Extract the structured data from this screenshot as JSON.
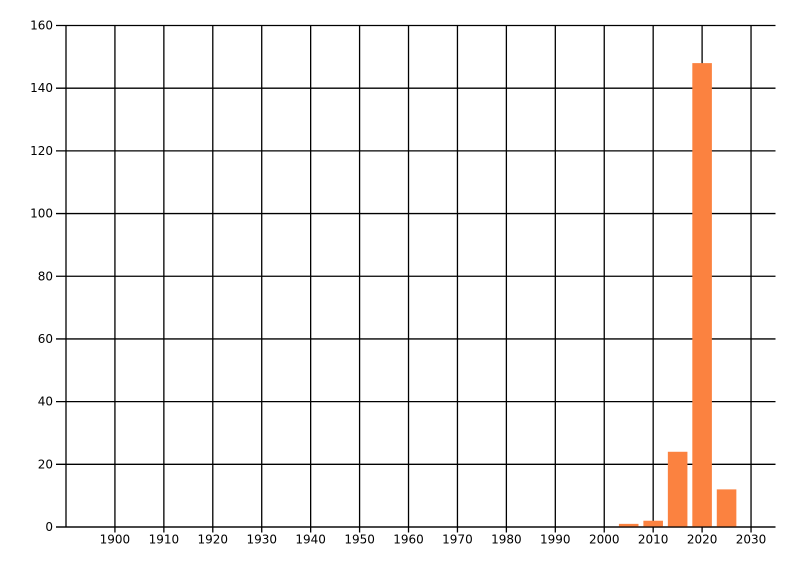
{
  "chart_data": {
    "type": "bar",
    "title": "",
    "xlabel": "",
    "ylabel": "",
    "categories": [
      2005,
      2010,
      2015,
      2020,
      2025
    ],
    "values": [
      1,
      2,
      24,
      148,
      12
    ],
    "bar_width_years": 4,
    "xlim": [
      1890,
      2035
    ],
    "ylim": [
      0,
      160
    ],
    "x_ticks": [
      1900,
      1910,
      1920,
      1930,
      1940,
      1950,
      1960,
      1970,
      1980,
      1990,
      2000,
      2010,
      2020,
      2030
    ],
    "y_ticks": [
      0,
      20,
      40,
      60,
      80,
      100,
      120,
      140,
      160
    ],
    "x_tick_labels": [
      "1900",
      "1910",
      "1920",
      "1930",
      "1940",
      "1950",
      "1960",
      "1970",
      "1980",
      "1990",
      "2000",
      "2010",
      "2020",
      "2030"
    ],
    "y_tick_labels": [
      "0",
      "20",
      "40",
      "60",
      "80",
      "100",
      "120",
      "140",
      "160"
    ],
    "grid": "both",
    "legend": false,
    "bar_color": "#FB8240",
    "axis_color": "#000000",
    "label_color": "#000000",
    "background_color": "#FFFFFF"
  }
}
